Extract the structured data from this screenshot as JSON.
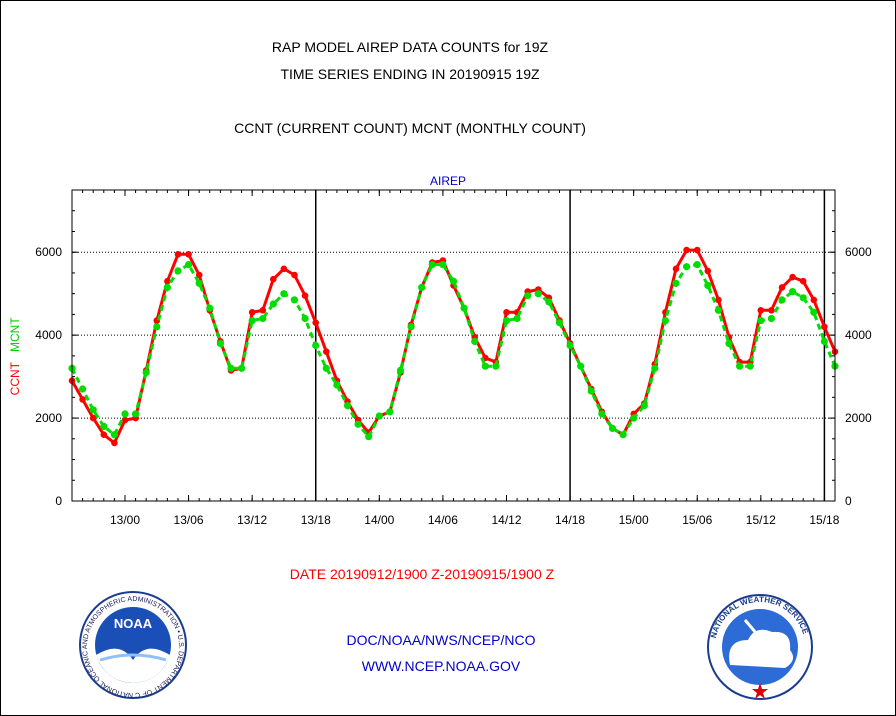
{
  "header": {
    "line1": "RAP MODEL AIREP DATA COUNTS for 19Z",
    "line2": "TIME SERIES ENDING IN 20190915 19Z",
    "line3": "CCNT (CURRENT COUNT) MCNT (MONTHLY COUNT)"
  },
  "footer": {
    "date_range": "DATE 20190912/1900 Z-20190915/1900 Z",
    "agency": "DOC/NOAA/NWS/NCEP/NCO",
    "website": "WWW.NCEP.NOAA.GOV"
  },
  "logos": {
    "noaa": {
      "label": "NOAA",
      "ring_text": "NATIONAL OCEANIC AND ATMOSPHERIC ADMINISTRATION • U.S. DEPARTMENT OF COMMERCE •"
    },
    "nws": {
      "ring_text": "NATIONAL WEATHER SERVICE"
    }
  },
  "colors": {
    "ccnt": "#ff0000",
    "mcnt": "#00dd00",
    "title": "#0000cc",
    "text": "#000000",
    "date": "#ff0000"
  },
  "chart_data": {
    "type": "line",
    "title": "AIREP",
    "ylabel_ccnt": "CCNT",
    "ylabel_mcnt": "MCNT",
    "x_unit": "hours since 12/19Z",
    "xlim": [
      0,
      72
    ],
    "ylim": [
      0,
      7500
    ],
    "grid_y": [
      2000,
      4000,
      6000
    ],
    "yticks": [
      0,
      2000,
      4000,
      6000
    ],
    "xticks": [
      {
        "h": 5,
        "label": "13/00"
      },
      {
        "h": 11,
        "label": "13/06"
      },
      {
        "h": 17,
        "label": "13/12"
      },
      {
        "h": 23,
        "label": "13/18"
      },
      {
        "h": 29,
        "label": "14/00"
      },
      {
        "h": 35,
        "label": "14/06"
      },
      {
        "h": 41,
        "label": "14/12"
      },
      {
        "h": 47,
        "label": "14/18"
      },
      {
        "h": 53,
        "label": "15/00"
      },
      {
        "h": 59,
        "label": "15/06"
      },
      {
        "h": 65,
        "label": "15/12"
      },
      {
        "h": 71,
        "label": "15/18"
      }
    ],
    "day_boundaries_h": [
      23,
      47,
      71
    ],
    "series": [
      {
        "name": "CCNT",
        "color": "#ff0000",
        "values": [
          2900,
          2450,
          2000,
          1600,
          1400,
          1950,
          2000,
          3150,
          4350,
          5300,
          5950,
          5950,
          5450,
          4600,
          3850,
          3150,
          3200,
          4550,
          4600,
          5350,
          5600,
          5450,
          4950,
          4300,
          3600,
          2900,
          2400,
          1950,
          1650,
          2050,
          2150,
          3100,
          4250,
          5150,
          5750,
          5800,
          5200,
          4650,
          3950,
          3450,
          3350,
          4550,
          4550,
          5050,
          5100,
          4900,
          4350,
          3800,
          3250,
          2700,
          2150,
          1750,
          1600,
          2100,
          2350,
          3300,
          4550,
          5600,
          6050,
          6050,
          5550,
          4850,
          3950,
          3350,
          3350,
          4600,
          4600,
          5150,
          5400,
          5300,
          4850,
          4200,
          3600
        ]
      },
      {
        "name": "MCNT",
        "color": "#00dd00",
        "values": [
          3200,
          2700,
          2200,
          1800,
          1600,
          2100,
          2100,
          3100,
          4200,
          5150,
          5550,
          5700,
          5250,
          4650,
          3800,
          3200,
          3200,
          4350,
          4400,
          4750,
          5000,
          4850,
          4400,
          3750,
          3200,
          2800,
          2300,
          1850,
          1550,
          2050,
          2150,
          3150,
          4200,
          5150,
          5700,
          5700,
          5300,
          4650,
          3850,
          3250,
          3250,
          4350,
          4400,
          4950,
          5000,
          4800,
          4300,
          3750,
          3250,
          2650,
          2100,
          1750,
          1600,
          2000,
          2300,
          3200,
          4350,
          5250,
          5650,
          5700,
          5200,
          4600,
          3800,
          3250,
          3250,
          4350,
          4400,
          4850,
          5050,
          4900,
          4550,
          3850,
          3250
        ]
      }
    ]
  }
}
